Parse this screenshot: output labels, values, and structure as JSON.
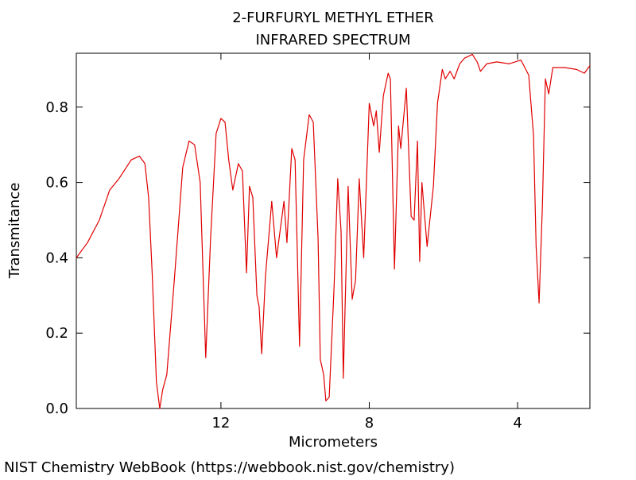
{
  "chart_data": {
    "type": "line",
    "title": "2-FURFURYL METHYL ETHER",
    "subtitle": "INFRARED SPECTRUM",
    "x_label": "Micrometers",
    "y_label": "Transmitance",
    "footer": "NIST Chemistry WebBook (https://webbook.nist.gov/chemistry)",
    "xlim": [
      15.9,
      2.05
    ],
    "xticks": [
      12,
      8,
      4
    ],
    "ylim": [
      0,
      0.943
    ],
    "yticks": [
      {
        "value": 0,
        "label": "0.0"
      },
      0.2,
      0.4,
      0.6,
      0.8
    ],
    "grid": false,
    "series": [
      {
        "name": "Transmitance",
        "color": "#e00000",
        "x": [
          15.9,
          15.6,
          15.28,
          15.0,
          14.75,
          14.42,
          14.2,
          14.05,
          13.95,
          13.85,
          13.74,
          13.65,
          13.57,
          13.46,
          13.25,
          13.03,
          12.86,
          12.71,
          12.56,
          12.41,
          12.28,
          12.13,
          12.0,
          11.89,
          11.79,
          11.68,
          11.53,
          11.42,
          11.31,
          11.23,
          11.14,
          11.03,
          10.97,
          10.9,
          10.8,
          10.63,
          10.5,
          10.3,
          10.22,
          10.09,
          10.0,
          9.88,
          9.77,
          9.62,
          9.51,
          9.38,
          9.32,
          9.23,
          9.17,
          9.08,
          8.95,
          8.85,
          8.76,
          8.7,
          8.57,
          8.46,
          8.37,
          8.27,
          8.15,
          8.0,
          7.88,
          7.81,
          7.73,
          7.62,
          7.49,
          7.43,
          7.32,
          7.21,
          7.15,
          7.0,
          6.87,
          6.79,
          6.7,
          6.64,
          6.58,
          6.44,
          6.27,
          6.16,
          6.03,
          5.95,
          5.82,
          5.71,
          5.56,
          5.43,
          5.22,
          5.09,
          5.0,
          4.83,
          4.56,
          4.23,
          3.91,
          3.7,
          3.57,
          3.5,
          3.42,
          3.33,
          3.25,
          3.16,
          3.05,
          2.73,
          2.41,
          2.2,
          2.05
        ],
        "values": [
          0.4,
          0.44,
          0.5,
          0.58,
          0.61,
          0.66,
          0.67,
          0.65,
          0.56,
          0.35,
          0.07,
          0.0,
          0.05,
          0.09,
          0.35,
          0.64,
          0.71,
          0.7,
          0.6,
          0.135,
          0.45,
          0.73,
          0.77,
          0.76,
          0.66,
          0.58,
          0.65,
          0.63,
          0.36,
          0.59,
          0.56,
          0.3,
          0.27,
          0.145,
          0.35,
          0.55,
          0.4,
          0.55,
          0.44,
          0.69,
          0.66,
          0.165,
          0.66,
          0.78,
          0.76,
          0.45,
          0.13,
          0.09,
          0.02,
          0.03,
          0.32,
          0.61,
          0.47,
          0.08,
          0.59,
          0.29,
          0.34,
          0.61,
          0.4,
          0.81,
          0.75,
          0.79,
          0.68,
          0.83,
          0.89,
          0.875,
          0.37,
          0.75,
          0.69,
          0.85,
          0.51,
          0.5,
          0.71,
          0.39,
          0.6,
          0.43,
          0.59,
          0.81,
          0.9,
          0.875,
          0.895,
          0.875,
          0.915,
          0.93,
          0.94,
          0.92,
          0.895,
          0.915,
          0.92,
          0.915,
          0.925,
          0.885,
          0.725,
          0.43,
          0.28,
          0.54,
          0.875,
          0.835,
          0.905,
          0.905,
          0.9,
          0.89,
          0.91
        ]
      }
    ]
  }
}
